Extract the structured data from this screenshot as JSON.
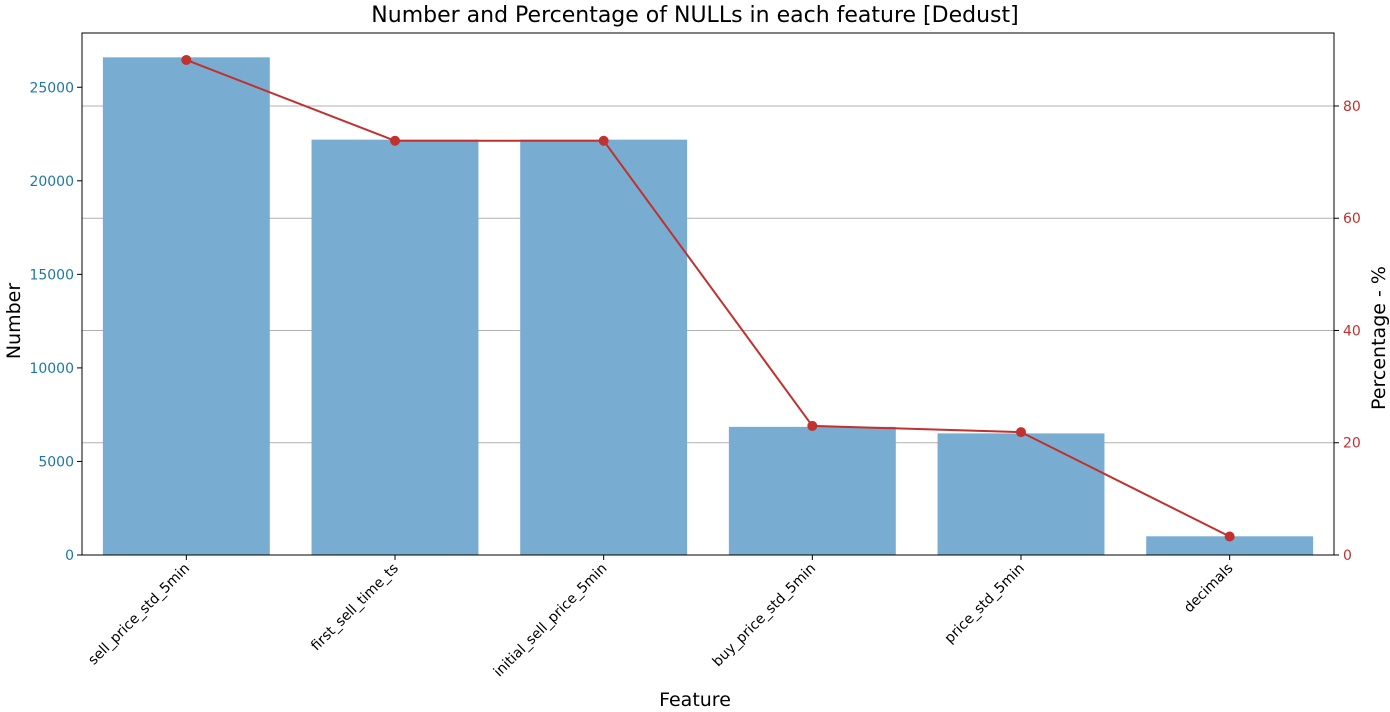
{
  "chart_data": {
    "type": "bar",
    "title": "Number and Percentage of NULLs in each feature [Dedust]",
    "xlabel": "Feature",
    "ylabel": "Number",
    "y2label": "Percentage - %",
    "categories": [
      "sell_price_std_5min",
      "first_sell_time_ts",
      "initial_sell_price_5min",
      "buy_price_std_5min",
      "price_std_5min",
      "decimals"
    ],
    "series": [
      {
        "type": "bar",
        "axis": "left",
        "color": "#78acd0",
        "values": [
          26600,
          22200,
          22200,
          6850,
          6500,
          1000
        ]
      },
      {
        "type": "line",
        "axis": "right",
        "color": "#c0312f",
        "values": [
          88.2,
          73.8,
          73.8,
          23.0,
          21.9,
          3.3
        ]
      }
    ],
    "ylim": [
      0,
      27900
    ],
    "y2lim": [
      0,
      93
    ],
    "yticks": [
      0,
      5000,
      10000,
      15000,
      20000,
      25000
    ],
    "y2ticks": [
      0,
      20,
      40,
      60,
      80
    ],
    "grid": "horizontal, right axis ticks",
    "colors": {
      "left_axis": "#1f77a8",
      "right_axis": "#c0312f",
      "grid": "#b0b0b0"
    }
  }
}
